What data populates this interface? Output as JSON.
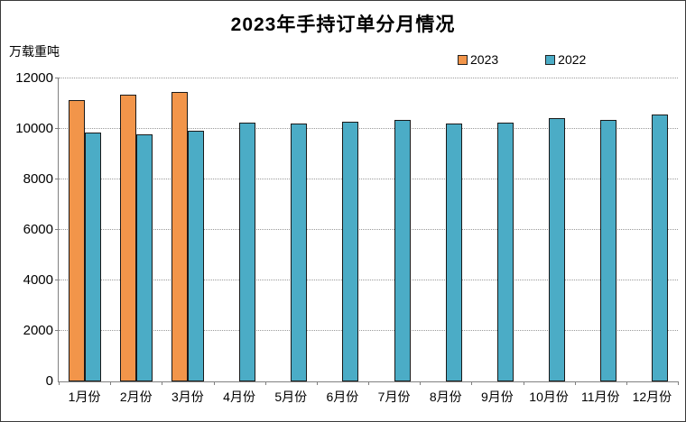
{
  "chart_data": {
    "type": "bar",
    "title": "2023年手持订单分月情况",
    "unit_label": "万载重吨",
    "categories": [
      "1月份",
      "2月份",
      "3月份",
      "4月份",
      "5月份",
      "6月份",
      "7月份",
      "8月份",
      "9月份",
      "10月份",
      "11月份",
      "12月份"
    ],
    "series": [
      {
        "name": "2023",
        "color": "#F2954A",
        "values": [
          11139,
          11367,
          11452,
          null,
          null,
          null,
          null,
          null,
          null,
          null,
          null,
          null
        ]
      },
      {
        "name": "2022",
        "color": "#4BACC6",
        "values": [
          9859,
          9774,
          9934,
          10247,
          10214,
          10274,
          10366,
          10206,
          10253,
          10434,
          10349,
          10557
        ]
      }
    ],
    "ylim": [
      0,
      12000
    ],
    "yticks": [
      0,
      2000,
      4000,
      6000,
      8000,
      10000,
      12000
    ],
    "xlabel": "",
    "ylabel": "万载重吨",
    "grid": "horizontal-dotted",
    "legend_position": "top-right",
    "bar_border_color": "#1a1a1a",
    "axis_color": "#808080"
  }
}
